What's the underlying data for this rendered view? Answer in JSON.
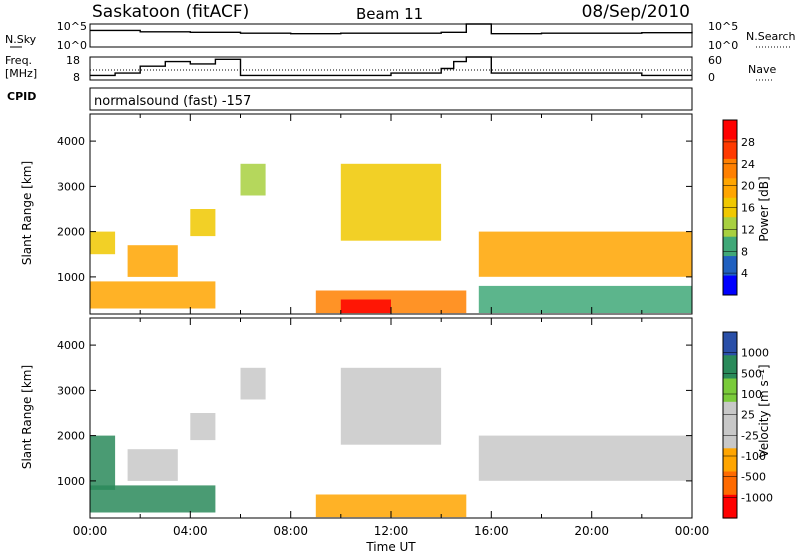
{
  "header": {
    "station": "Saskatoon (fitACF)",
    "beam": "Beam 11",
    "date": "08/Sep/2010"
  },
  "params": {
    "nsky_label": "N.Sky",
    "nsky_ticks": [
      "10^5",
      "10^0"
    ],
    "nsearch_label": "N.Search",
    "nsearch_ticks": [
      "10^5",
      "10^0"
    ],
    "freq_label_1": "Freq.",
    "freq_label_2": "[MHz]",
    "freq_ticks": [
      "18",
      "8"
    ],
    "nave_label": "Nave",
    "nave_ticks": [
      "60",
      "0"
    ],
    "cpid_label": "CPID",
    "cpid_value": "normalsound (fast) -157"
  },
  "axes": {
    "xlabel": "Time UT",
    "ylabel": "Slant Range [km]",
    "xticks": [
      "00:00",
      "04:00",
      "08:00",
      "12:00",
      "16:00",
      "20:00",
      "00:00"
    ],
    "yticks": [
      "4000",
      "3000",
      "2000",
      "1000"
    ]
  },
  "colorbars": {
    "power": {
      "label": "Power [dB]",
      "ticks": [
        "28",
        "24",
        "20",
        "16",
        "12",
        "8",
        "4"
      ],
      "colors": [
        "#ff0000",
        "#ff3a00",
        "#ff8000",
        "#ffa500",
        "#f0c800",
        "#a8d040",
        "#40a878",
        "#2060c0",
        "#0000ff"
      ]
    },
    "velocity": {
      "label": "Velocity [m s⁻¹]",
      "ticks": [
        "1000",
        "500",
        "100",
        "25",
        "-25",
        "-100",
        "-500",
        "-1000"
      ],
      "colors": [
        "#2a4fa8",
        "#2a8a5a",
        "#7acb3a",
        "#c8c8c8",
        "#c8c8c8",
        "#ffa500",
        "#ff6a00",
        "#ff0000"
      ]
    }
  },
  "chart_data": [
    {
      "type": "line",
      "title": "Saskatoon (fitACF) Beam 11 08/Sep/2010",
      "panel": "N.Sky / N.Search",
      "x": [
        "00:00",
        "02:00",
        "04:00",
        "06:00",
        "08:00",
        "10:00",
        "12:00",
        "14:00",
        "15:00",
        "16:00",
        "18:00",
        "20:00",
        "22:00",
        "24:00"
      ],
      "series": [
        {
          "name": "N.Sky",
          "values_log10": [
            3.6,
            3.3,
            3.2,
            3.0,
            2.9,
            3.0,
            3.0,
            3.2,
            5.0,
            2.9,
            3.0,
            3.0,
            3.1,
            3.3
          ]
        },
        {
          "name": "N.Search",
          "values_log10": [
            0,
            0,
            0,
            0,
            0,
            0,
            0,
            0,
            0,
            0,
            0,
            0,
            0,
            0
          ]
        }
      ],
      "ylim_log10": [
        0,
        5
      ]
    },
    {
      "type": "line",
      "panel": "Freq. / Nave",
      "xlabel": "Time UT",
      "x": [
        "00:00",
        "01:00",
        "02:00",
        "03:00",
        "04:00",
        "05:00",
        "06:00",
        "08:00",
        "10:00",
        "12:00",
        "14:00",
        "14:30",
        "15:00",
        "16:00",
        "18:00",
        "20:00",
        "22:00",
        "24:00"
      ],
      "series": [
        {
          "name": "Freq. [MHz]",
          "values": [
            10,
            11,
            14,
            16,
            15,
            17,
            10,
            10,
            10,
            11,
            13,
            16,
            18,
            11,
            11,
            11,
            10,
            10
          ]
        },
        {
          "name": "Nave",
          "values": [
            22,
            22,
            22,
            22,
            22,
            22,
            22,
            22,
            22,
            22,
            22,
            22,
            22,
            22,
            22,
            22,
            22,
            22
          ]
        }
      ]
    },
    {
      "type": "heatmap",
      "panel": "Power",
      "xlabel": "Time UT",
      "ylabel": "Slant Range [km]",
      "ylim": [
        180,
        4600
      ],
      "zlabel": "Power [dB]",
      "zlim": [
        0,
        30
      ],
      "regions": [
        {
          "t0": 0.0,
          "t1": 1.0,
          "r0": 1500,
          "r1": 2000,
          "power": 16
        },
        {
          "t0": 0.0,
          "t1": 5.0,
          "r0": 300,
          "r1": 900,
          "power": 18
        },
        {
          "t0": 1.5,
          "t1": 3.5,
          "r0": 1000,
          "r1": 1700,
          "power": 20
        },
        {
          "t0": 4.0,
          "t1": 5.0,
          "r0": 1900,
          "r1": 2500,
          "power": 16
        },
        {
          "t0": 6.0,
          "t1": 7.0,
          "r0": 2800,
          "r1": 3500,
          "power": 10
        },
        {
          "t0": 9.0,
          "t1": 15.0,
          "r0": 200,
          "r1": 700,
          "power": 22
        },
        {
          "t0": 10.0,
          "t1": 12.0,
          "r0": 200,
          "r1": 500,
          "power": 30
        },
        {
          "t0": 10.0,
          "t1": 14.0,
          "r0": 1800,
          "r1": 3500,
          "power": 16
        },
        {
          "t0": 15.5,
          "t1": 24.0,
          "r0": 1000,
          "r1": 2000,
          "power": 18
        },
        {
          "t0": 15.5,
          "t1": 24.0,
          "r0": 200,
          "r1": 800,
          "power": 8
        }
      ]
    },
    {
      "type": "heatmap",
      "panel": "Velocity",
      "xlabel": "Time UT",
      "ylabel": "Slant Range [km]",
      "ylim": [
        180,
        4600
      ],
      "zlabel": "Velocity [m s⁻¹]",
      "zlim": [
        -1000,
        1000
      ],
      "regions": [
        {
          "t0": 0.0,
          "t1": 1.0,
          "r0": 800,
          "r1": 2000,
          "velocity": 300
        },
        {
          "t0": 0.0,
          "t1": 5.0,
          "r0": 300,
          "r1": 900,
          "velocity": 100
        },
        {
          "t0": 1.5,
          "t1": 3.5,
          "r0": 1000,
          "r1": 1700,
          "velocity": 0
        },
        {
          "t0": 4.0,
          "t1": 5.0,
          "r0": 1900,
          "r1": 2500,
          "velocity": 0
        },
        {
          "t0": 6.0,
          "t1": 7.0,
          "r0": 2800,
          "r1": 3500,
          "velocity": 0
        },
        {
          "t0": 9.0,
          "t1": 15.0,
          "r0": 200,
          "r1": 700,
          "velocity": -150
        },
        {
          "t0": 10.0,
          "t1": 14.0,
          "r0": 1800,
          "r1": 3500,
          "velocity": 0
        },
        {
          "t0": 15.5,
          "t1": 24.0,
          "r0": 1000,
          "r1": 2000,
          "velocity": 0
        }
      ]
    }
  ]
}
